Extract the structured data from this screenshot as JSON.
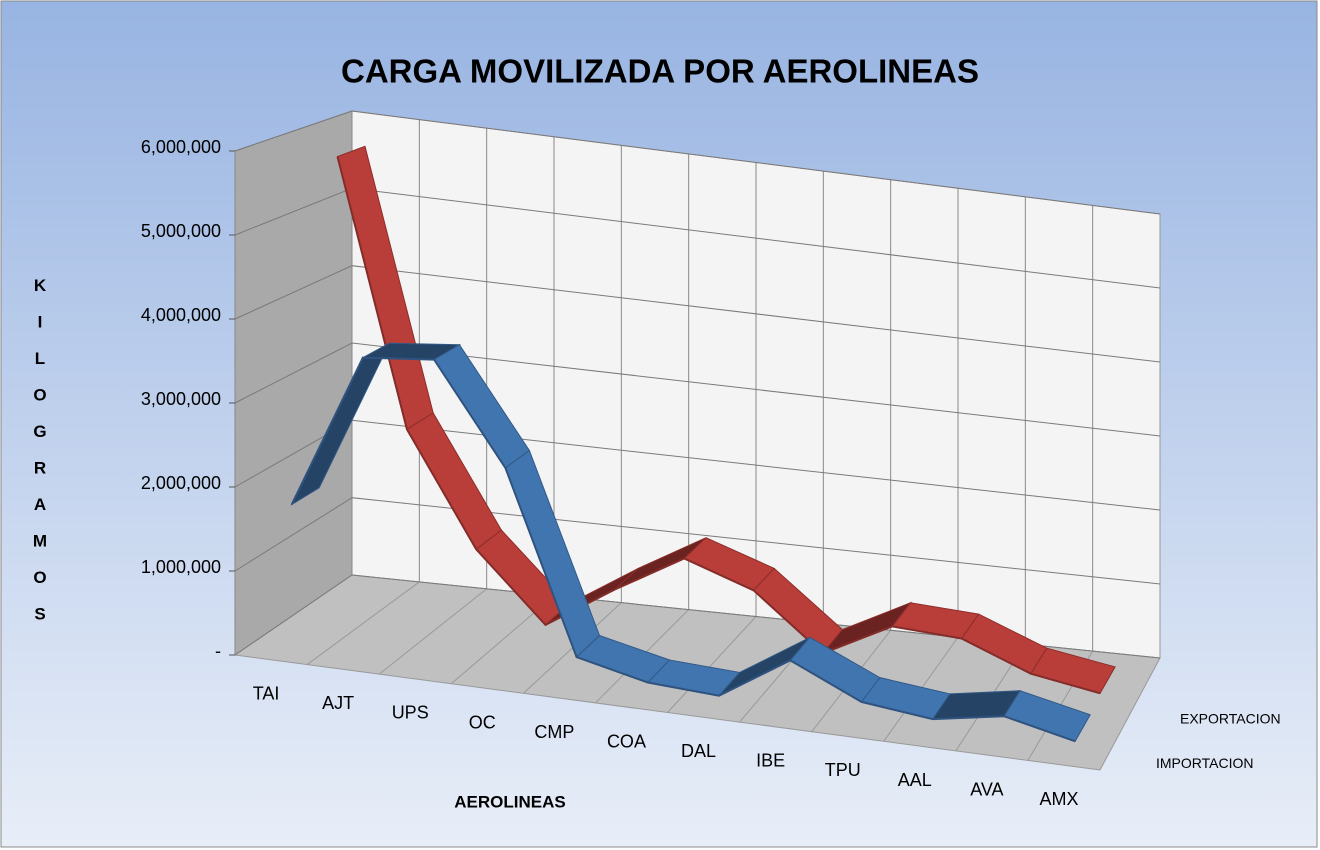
{
  "chart_data": {
    "type": "line3d",
    "title": "CARGA MOVILIZADA POR AEROLINEAS",
    "x_label": "AEROLINEAS",
    "y_label": "KILOGRAMOS",
    "categories": [
      "TAI",
      "AJT",
      "UPS",
      "OC",
      "CMP",
      "COA",
      "DAL",
      "IBE",
      "TPU",
      "AAL",
      "AVA",
      "AMX"
    ],
    "series": [
      {
        "name": "IMPORTACION",
        "color": "#3e6fa8",
        "values": [
          1700000,
          3600000,
          3700000,
          2500000,
          300000,
          100000,
          50000,
          600000,
          200000,
          100000,
          250000,
          50000
        ]
      },
      {
        "name": "EXPORTACION",
        "color": "#b03a36",
        "values": [
          5700000,
          2400000,
          1000000,
          150000,
          700000,
          1200000,
          900000,
          200000,
          650000,
          600000,
          250000,
          100000
        ]
      }
    ],
    "ylim": [
      0,
      6000000
    ],
    "yticks": [
      {
        "value": 0,
        "label": "-"
      },
      {
        "value": 1000000,
        "label": "1,000,000"
      },
      {
        "value": 2000000,
        "label": "2,000,000"
      },
      {
        "value": 3000000,
        "label": "3,000,000"
      },
      {
        "value": 4000000,
        "label": "4,000,000"
      },
      {
        "value": 5000000,
        "label": "5,000,000"
      },
      {
        "value": 6000000,
        "label": "6,000,000"
      }
    ],
    "grid": true
  }
}
